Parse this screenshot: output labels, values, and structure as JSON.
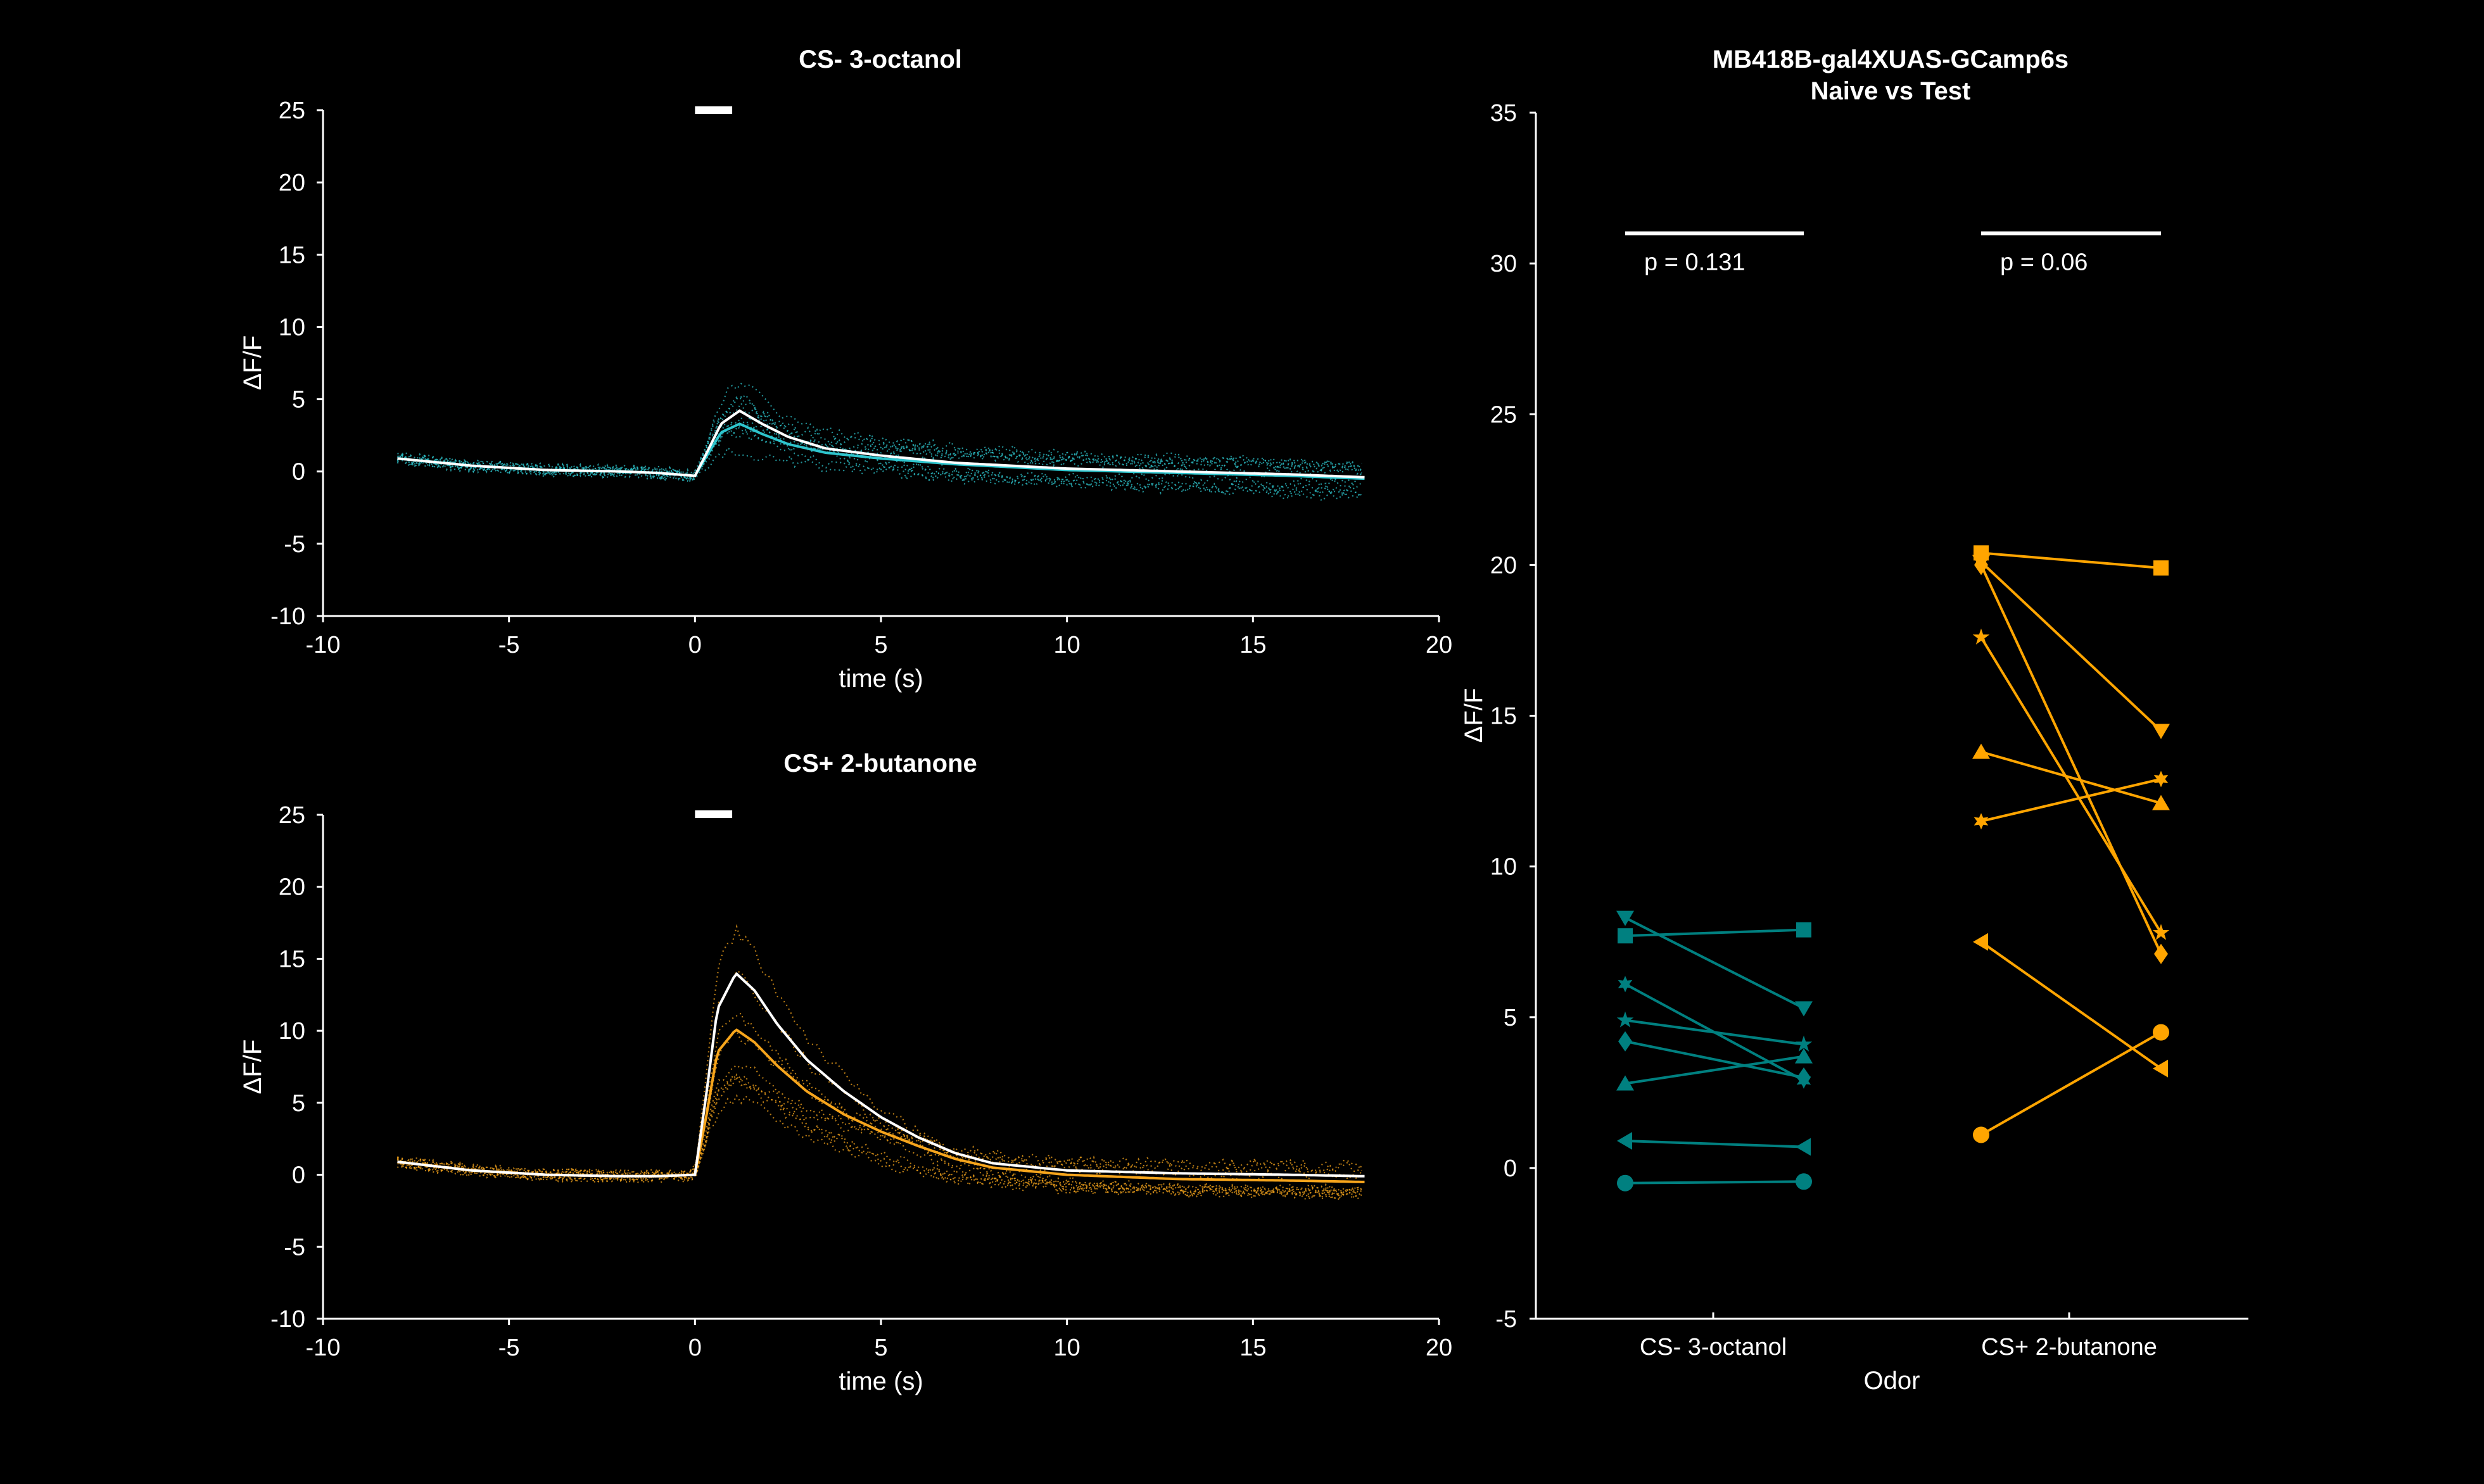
{
  "chart_data": [
    {
      "type": "line",
      "title": "CS-  3-octanol",
      "xlabel": "time (s)",
      "ylabel": "ΔF/F",
      "xlim": [
        -10,
        20
      ],
      "ylim": [
        -10,
        25
      ],
      "xticks": [
        "-10",
        "-5",
        "0",
        "5",
        "10",
        "15",
        "20"
      ],
      "yticks": [
        "-10",
        "-5",
        "0",
        "5",
        "10",
        "15",
        "20",
        "25"
      ],
      "odor_bar_s": [
        0,
        1
      ],
      "colors": {
        "trace": "#2ec4cc",
        "mean": "#ffffff"
      },
      "series": [
        {
          "x": [
            -8,
            -6,
            -4,
            -2,
            -1,
            0,
            0.3,
            0.7,
            1.2,
            1.8,
            2.5,
            3.5,
            5,
            7,
            10,
            13,
            16,
            18
          ],
          "values": [
            0.9,
            0.4,
            0.1,
            0.0,
            -0.1,
            -0.3,
            1.2,
            3.3,
            4.2,
            3.3,
            2.4,
            1.6,
            1.1,
            0.6,
            0.2,
            0.0,
            -0.2,
            -0.4
          ]
        },
        {
          "x": [
            -8,
            -6,
            -4,
            -2,
            -1,
            0,
            0.3,
            0.7,
            1.2,
            1.8,
            2.5,
            3.5,
            5,
            7,
            10,
            13,
            16,
            18
          ],
          "values": [
            0.9,
            0.4,
            0.1,
            0.0,
            -0.1,
            -0.3,
            1.0,
            2.7,
            3.3,
            2.6,
            1.9,
            1.3,
            0.9,
            0.5,
            0.1,
            -0.1,
            -0.3,
            -0.5
          ]
        }
      ]
    },
    {
      "type": "line",
      "title": "CS+  2-butanone",
      "xlabel": "time (s)",
      "ylabel": "ΔF/F",
      "xlim": [
        -10,
        20
      ],
      "ylim": [
        -10,
        25
      ],
      "xticks": [
        "-10",
        "-5",
        "0",
        "5",
        "10",
        "15",
        "20"
      ],
      "yticks": [
        "-10",
        "-5",
        "0",
        "5",
        "10",
        "15",
        "20",
        "25"
      ],
      "odor_bar_s": [
        0,
        1
      ],
      "colors": {
        "trace": "#f7a51c",
        "mean": "#ffffff"
      },
      "series": [
        {
          "x": [
            -8,
            -6,
            -4,
            -2,
            -1,
            0,
            0.3,
            0.6,
            1.1,
            1.6,
            2.2,
            3,
            4,
            5,
            6,
            7,
            8,
            10,
            13,
            16,
            18
          ],
          "values": [
            0.9,
            0.3,
            0.0,
            -0.1,
            -0.1,
            0.0,
            5.5,
            11.5,
            14.0,
            12.8,
            10.5,
            8.0,
            5.8,
            4.0,
            2.6,
            1.5,
            0.8,
            0.3,
            0.1,
            0.0,
            -0.1
          ]
        },
        {
          "x": [
            -8,
            -6,
            -4,
            -2,
            -1,
            0,
            0.3,
            0.6,
            1.1,
            1.6,
            2.2,
            3,
            4,
            5,
            6,
            7,
            8,
            10,
            13,
            16,
            18
          ],
          "values": [
            0.9,
            0.3,
            0.0,
            -0.1,
            -0.1,
            0.0,
            4.0,
            8.5,
            10.1,
            9.2,
            7.6,
            5.8,
            4.2,
            3.0,
            2.0,
            1.1,
            0.5,
            0.0,
            -0.3,
            -0.4,
            -0.5
          ]
        }
      ]
    },
    {
      "type": "scatter",
      "title": "MB418B-gal4XUAS-GCamp6s",
      "subtitle": "Naive vs Test",
      "xlabel": "Odor",
      "ylabel": "ΔF/F",
      "categories": [
        "CS- 3-octanol",
        "CS+ 2-butanone"
      ],
      "ylim": [
        -5,
        35
      ],
      "yticks": [
        "-5",
        "0",
        "5",
        "10",
        "15",
        "20",
        "25",
        "30",
        "35"
      ],
      "colors": {
        "cs_minus": "#008080",
        "cs_plus": "#ffa500"
      },
      "annotations": [
        {
          "group": 0,
          "text": "p = 0.131",
          "y": 31
        },
        {
          "group": 1,
          "text": "p = 0.06",
          "y": 31
        }
      ],
      "groups": [
        {
          "name": "CS- 3-octanol",
          "pairs": [
            {
              "marker": "triangle-down",
              "values": [
                8.3,
                5.3
              ]
            },
            {
              "marker": "square",
              "values": [
                7.7,
                7.9
              ]
            },
            {
              "marker": "hexagram",
              "values": [
                6.1,
                2.9
              ]
            },
            {
              "marker": "pentagram",
              "values": [
                4.9,
                4.1
              ]
            },
            {
              "marker": "diamond",
              "values": [
                4.2,
                3.0
              ]
            },
            {
              "marker": "triangle-up",
              "values": [
                2.8,
                3.7
              ]
            },
            {
              "marker": "triangle-left",
              "values": [
                0.9,
                0.7
              ]
            },
            {
              "marker": "circle",
              "values": [
                -0.5,
                -0.45
              ]
            }
          ]
        },
        {
          "name": "CS+ 2-butanone",
          "pairs": [
            {
              "marker": "square",
              "values": [
                20.4,
                19.9
              ]
            },
            {
              "marker": "diamond",
              "values": [
                20.0,
                7.1
              ]
            },
            {
              "marker": "triangle-down",
              "values": [
                20.1,
                14.5
              ]
            },
            {
              "marker": "pentagram",
              "values": [
                17.6,
                7.8
              ]
            },
            {
              "marker": "triangle-up",
              "values": [
                13.8,
                12.1
              ]
            },
            {
              "marker": "hexagram",
              "values": [
                11.5,
                12.9
              ]
            },
            {
              "marker": "triangle-left",
              "values": [
                7.5,
                3.3
              ]
            },
            {
              "marker": "circle",
              "values": [
                1.1,
                4.5
              ]
            }
          ]
        }
      ]
    }
  ]
}
